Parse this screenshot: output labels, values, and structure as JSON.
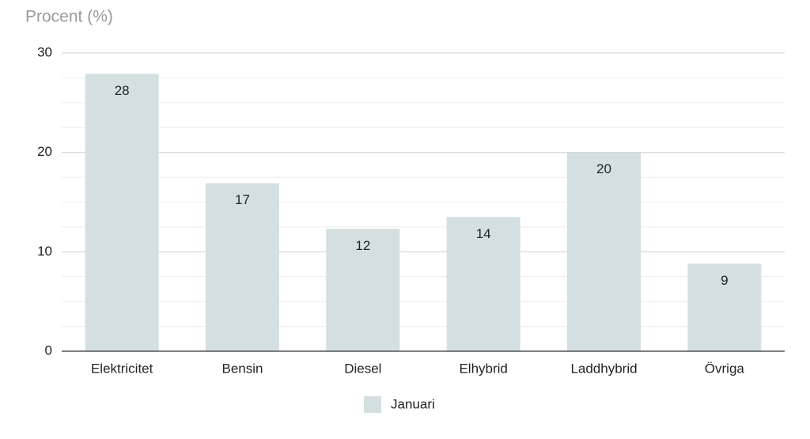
{
  "chart_data": {
    "type": "bar",
    "y_axis_title": "Procent (%)",
    "categories": [
      "Elektricitet",
      "Bensin",
      "Diesel",
      "Elhybrid",
      "Laddhybrid",
      "Övriga"
    ],
    "series": [
      {
        "name": "Januari",
        "color": "#d4dfe0",
        "values": [
          27.9,
          16.9,
          12.3,
          13.5,
          20,
          8.8
        ],
        "value_labels": [
          "28",
          "17",
          "12",
          "14",
          "20",
          "9"
        ]
      }
    ],
    "ylim": [
      0,
      30
    ],
    "yticks": [
      0,
      10,
      20,
      30
    ],
    "minor_yticks": [
      2.5,
      5,
      7.5,
      12.5,
      15,
      17.5,
      22.5,
      25,
      27.5
    ],
    "grid": true,
    "legend": "bottom"
  }
}
